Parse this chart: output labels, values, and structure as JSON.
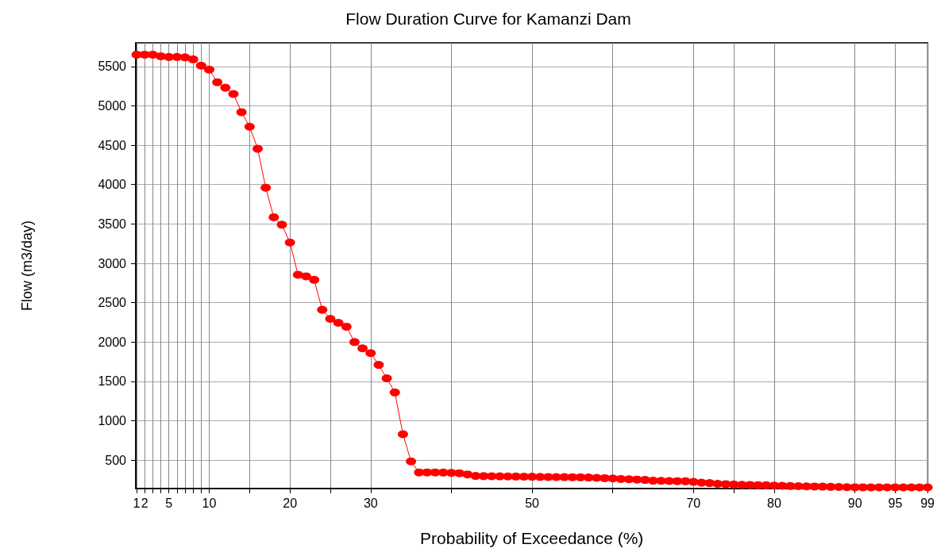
{
  "chart_data": {
    "type": "line",
    "title": "Flow Duration Curve for Kamanzi Dam",
    "xlabel": "Probability of Exceedance (%)",
    "ylabel": "Flow (m3/day)",
    "x": [
      1,
      2,
      3,
      4,
      5,
      6,
      7,
      8,
      9,
      10,
      11,
      12,
      13,
      14,
      15,
      16,
      17,
      18,
      19,
      20,
      21,
      22,
      23,
      24,
      25,
      26,
      27,
      28,
      29,
      30,
      31,
      32,
      33,
      34,
      35,
      36,
      37,
      38,
      39,
      40,
      41,
      42,
      43,
      44,
      45,
      46,
      47,
      48,
      49,
      50,
      51,
      52,
      53,
      54,
      55,
      56,
      57,
      58,
      59,
      60,
      61,
      62,
      63,
      64,
      65,
      66,
      67,
      68,
      69,
      70,
      71,
      72,
      73,
      74,
      75,
      76,
      77,
      78,
      79,
      80,
      81,
      82,
      83,
      84,
      85,
      86,
      87,
      88,
      89,
      90,
      91,
      92,
      93,
      94,
      95,
      96,
      97,
      98,
      99
    ],
    "series": [
      {
        "color": "#ff0000",
        "values": [
          5650,
          5650,
          5650,
          5630,
          5620,
          5620,
          5615,
          5590,
          5510,
          5460,
          5300,
          5230,
          5150,
          4920,
          4735,
          4455,
          3960,
          3585,
          3490,
          3265,
          2855,
          2835,
          2790,
          2410,
          2295,
          2245,
          2195,
          2000,
          1920,
          1860,
          1710,
          1540,
          1360,
          830,
          485,
          345,
          345,
          345,
          343,
          340,
          335,
          320,
          300,
          298,
          296,
          295,
          294,
          293,
          291,
          290,
          288,
          287,
          286,
          285,
          284,
          283,
          280,
          276,
          272,
          268,
          262,
          258,
          254,
          250,
          240,
          238,
          236,
          234,
          232,
          225,
          215,
          210,
          200,
          196,
          192,
          188,
          186,
          184,
          182,
          178,
          175,
          172,
          170,
          168,
          166,
          164,
          162,
          160,
          158,
          156,
          156,
          155,
          155,
          155,
          155,
          155,
          155,
          155,
          155
        ]
      }
    ],
    "xlim": [
      0.9,
      99.03
    ],
    "xticks": [
      1,
      2,
      {
        "value": 3,
        "label": null
      },
      {
        "value": 4,
        "label": null
      },
      5,
      {
        "value": 6,
        "label": null
      },
      {
        "value": 7,
        "label": null
      },
      {
        "value": 8,
        "label": null
      },
      {
        "value": 9,
        "label": null
      },
      10,
      {
        "value": 15,
        "label": null
      },
      20,
      {
        "value": 25,
        "label": null
      },
      30,
      {
        "value": 40,
        "label": null
      },
      50,
      {
        "value": 60,
        "label": null
      },
      70,
      {
        "value": 75,
        "label": null
      },
      80,
      90,
      95,
      99
    ],
    "ylim": [
      140,
      5800
    ],
    "yticks": [
      500,
      1000,
      1500,
      2000,
      2500,
      3000,
      3500,
      4000,
      4500,
      5000,
      5500
    ],
    "grid": true,
    "marker": "circle",
    "line_style": "solid"
  }
}
